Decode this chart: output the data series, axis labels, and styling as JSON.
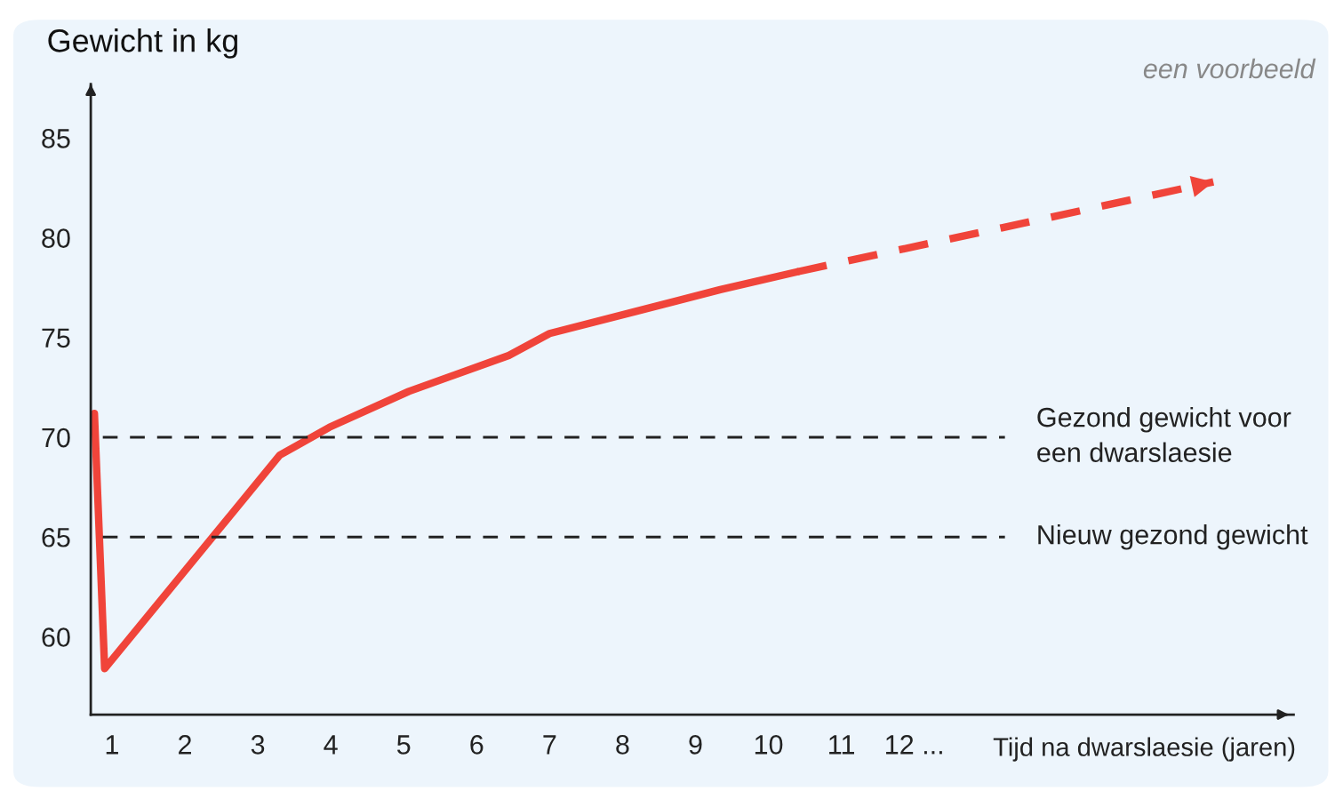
{
  "chart_data": {
    "type": "line",
    "title": "Gewicht in kg",
    "xlabel": "Tijd na dwarslaesie (jaren)",
    "annotations": [
      "een voorbeeld"
    ],
    "xlim": [
      0.71,
      17.2
    ],
    "xticks": [
      1,
      2,
      3,
      4,
      5,
      6,
      7,
      8,
      9,
      10,
      11,
      {
        "value": 12,
        "label": "12 ..."
      }
    ],
    "ylim": [
      56.1,
      87.7
    ],
    "yticks": [
      60,
      65,
      70,
      75,
      80,
      85
    ],
    "grid": false,
    "legend": false,
    "marker": "none",
    "series": [
      {
        "color": "#f0443a",
        "line_style": "solid",
        "x": [
          0.76,
          0.9,
          3.3,
          3.98,
          5.07,
          6.44,
          7.0,
          8.17,
          9.34,
          10.4
        ],
        "values": [
          71.2,
          58.4,
          69.1,
          70.5,
          72.3,
          74.1,
          75.2,
          76.3,
          77.4,
          78.3
        ]
      },
      {
        "color": "#f0443a",
        "line_style": "dashed",
        "x": [
          10.4,
          13.2,
          16.1
        ],
        "values": [
          78.3,
          80.5,
          82.8
        ]
      }
    ],
    "ref_lines": [
      {
        "axis": "y",
        "value": 70,
        "label": "Gezond gewicht voor\neen dwarslaesie",
        "color": "#222222",
        "line_style": "dashed"
      },
      {
        "axis": "y",
        "value": 65,
        "label": "Nieuw gezond gewicht",
        "color": "#222222",
        "line_style": "dashed"
      }
    ]
  }
}
